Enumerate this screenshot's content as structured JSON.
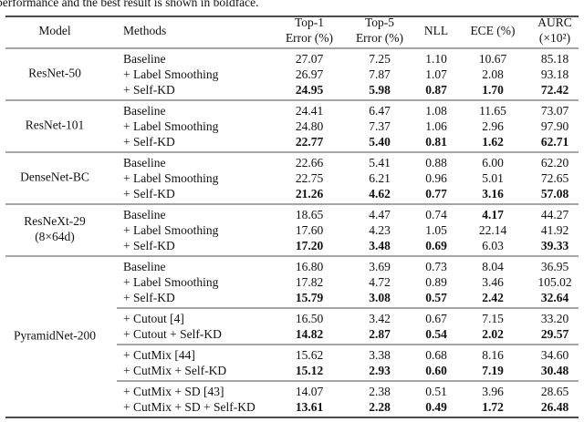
{
  "caption": "performance and the best result is shown in boldface.",
  "table": {
    "header": [
      {
        "lines": [
          "Model"
        ]
      },
      {
        "lines": [
          "Methods"
        ]
      },
      {
        "lines": [
          "Top-1",
          "Error (%)"
        ]
      },
      {
        "lines": [
          "Top-5",
          "Error (%)"
        ]
      },
      {
        "lines": [
          "NLL"
        ]
      },
      {
        "lines": [
          "ECE (%)"
        ]
      },
      {
        "lines": [
          "AURC",
          "(×10²)"
        ]
      }
    ],
    "groups": [
      {
        "model": [
          "ResNet-50"
        ],
        "sections": [
          [
            {
              "cells": [
                "Baseline",
                "27.07",
                "7.25",
                "1.10",
                "10.67",
                "85.18"
              ],
              "bold": []
            },
            {
              "cells": [
                "+ Label Smoothing",
                "26.97",
                "7.87",
                "1.07",
                "2.08",
                "93.18"
              ],
              "bold": []
            },
            {
              "cells": [
                "+ Self-KD",
                "24.95",
                "5.98",
                "0.87",
                "1.70",
                "72.42"
              ],
              "bold": [
                1,
                2,
                3,
                4,
                5
              ]
            }
          ]
        ]
      },
      {
        "model": [
          "ResNet-101"
        ],
        "sections": [
          [
            {
              "cells": [
                "Baseline",
                "24.41",
                "6.47",
                "1.08",
                "11.65",
                "73.07"
              ],
              "bold": []
            },
            {
              "cells": [
                "+ Label Smoothing",
                "24.80",
                "7.37",
                "1.06",
                "2.96",
                "97.90"
              ],
              "bold": []
            },
            {
              "cells": [
                "+ Self-KD",
                "22.77",
                "5.40",
                "0.81",
                "1.62",
                "62.71"
              ],
              "bold": [
                1,
                2,
                3,
                4,
                5
              ]
            }
          ]
        ]
      },
      {
        "model": [
          "DenseNet-BC"
        ],
        "sections": [
          [
            {
              "cells": [
                "Baseline",
                "22.66",
                "5.41",
                "0.88",
                "6.00",
                "62.20"
              ],
              "bold": []
            },
            {
              "cells": [
                "+ Label Smoothing",
                "22.75",
                "6.21",
                "0.96",
                "5.01",
                "72.65"
              ],
              "bold": []
            },
            {
              "cells": [
                "+ Self-KD",
                "21.26",
                "4.62",
                "0.77",
                "3.16",
                "57.08"
              ],
              "bold": [
                1,
                2,
                3,
                4,
                5
              ]
            }
          ]
        ]
      },
      {
        "model": [
          "ResNeXt-29",
          "(8×64d)"
        ],
        "sections": [
          [
            {
              "cells": [
                "Baseline",
                "18.65",
                "4.47",
                "0.74",
                "4.17",
                "44.27"
              ],
              "bold": [
                4
              ]
            },
            {
              "cells": [
                "+ Label Smoothing",
                "17.60",
                "4.23",
                "1.05",
                "22.14",
                "41.92"
              ],
              "bold": []
            },
            {
              "cells": [
                "+ Self-KD",
                "17.20",
                "3.48",
                "0.69",
                "6.03",
                "39.33"
              ],
              "bold": [
                1,
                2,
                3,
                5
              ]
            }
          ]
        ]
      },
      {
        "model": [
          "PyramidNet-200"
        ],
        "sections": [
          [
            {
              "cells": [
                "Baseline",
                "16.80",
                "3.69",
                "0.73",
                "8.04",
                "36.95"
              ],
              "bold": []
            },
            {
              "cells": [
                "+ Label Smoothing",
                "17.82",
                "4.72",
                "0.89",
                "3.46",
                "105.02"
              ],
              "bold": []
            },
            {
              "cells": [
                "+ Self-KD",
                "15.79",
                "3.08",
                "0.57",
                "2.42",
                "32.64"
              ],
              "bold": [
                1,
                2,
                3,
                4,
                5
              ]
            }
          ],
          [
            {
              "cells": [
                "+ Cutout [4]",
                "16.50",
                "3.42",
                "0.67",
                "7.15",
                "33.20"
              ],
              "bold": []
            },
            {
              "cells": [
                "+ Cutout + Self-KD",
                "14.82",
                "2.87",
                "0.54",
                "2.02",
                "29.57"
              ],
              "bold": [
                1,
                2,
                3,
                4,
                5
              ]
            }
          ],
          [
            {
              "cells": [
                "+ CutMix [44]",
                "15.62",
                "3.38",
                "0.68",
                "8.16",
                "34.60"
              ],
              "bold": []
            },
            {
              "cells": [
                "+ CutMix + Self-KD",
                "15.12",
                "2.93",
                "0.60",
                "7.19",
                "30.48"
              ],
              "bold": [
                1,
                2,
                3,
                4,
                5
              ]
            }
          ],
          [
            {
              "cells": [
                "+ CutMix + SD [43]",
                "14.07",
                "2.38",
                "0.51",
                "3.96",
                "28.65"
              ],
              "bold": []
            },
            {
              "cells": [
                "+ CutMix + SD + Self-KD",
                "13.61",
                "2.28",
                "0.49",
                "1.72",
                "26.48"
              ],
              "bold": [
                1,
                2,
                3,
                4,
                5
              ]
            }
          ]
        ]
      }
    ]
  }
}
